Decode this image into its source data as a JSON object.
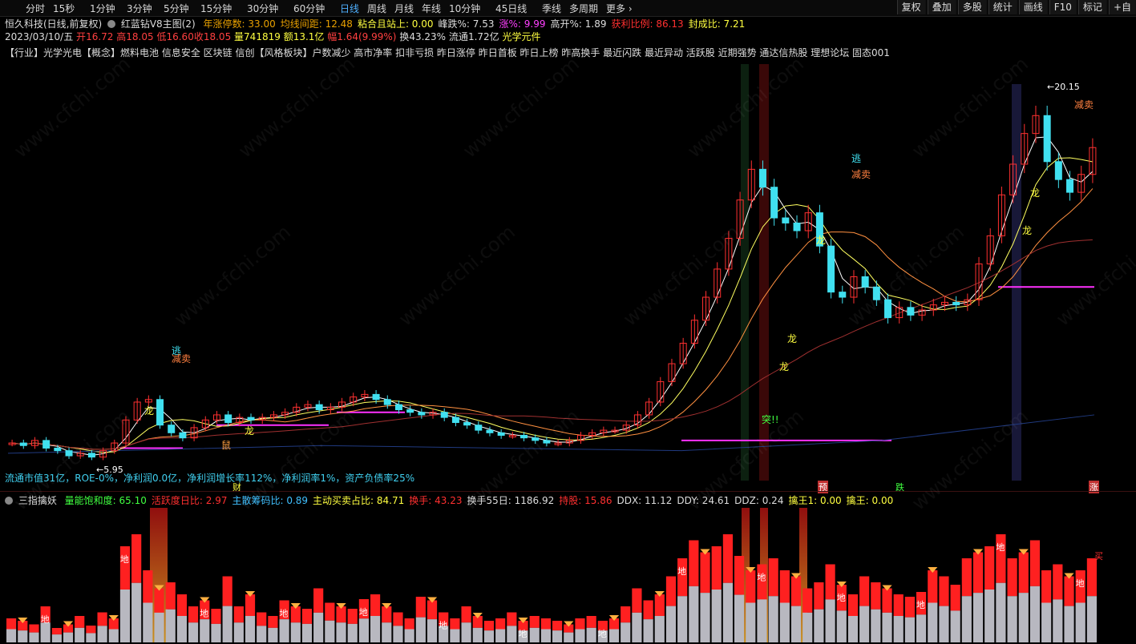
{
  "toolbar": {
    "timeframes": [
      "分时",
      "15秒",
      "1分钟",
      "3分钟",
      "5分钟",
      "15分钟",
      "30分钟",
      "60分钟",
      "日线",
      "周线",
      "月线",
      "年线",
      "10分钟",
      "45日线",
      "季线",
      "多周期",
      "更多"
    ],
    "active_timeframe": "日线",
    "right_buttons": [
      "复权",
      "叠加",
      "多股",
      "统计",
      "画线",
      "F10",
      "标记",
      "+自"
    ]
  },
  "header": {
    "stock_name": "恒久科技(日线,前复权)",
    "indicator_name": "红蓝钻V8主图(2)",
    "fields": [
      {
        "label": "年涨停数:",
        "value": "33.00",
        "color": "#e8a000"
      },
      {
        "label": "均线间距:",
        "value": "12.48",
        "color": "#e8a000"
      },
      {
        "label": "粘合且站上:",
        "value": "0.00",
        "color": "#ffff40"
      },
      {
        "label": "峰跌%:",
        "value": "7.53",
        "color": "#dddddd"
      },
      {
        "label": "涨%:",
        "value": "9.99",
        "color": "#ff40ff"
      },
      {
        "label": "高开%:",
        "value": "1.89",
        "color": "#dddddd"
      },
      {
        "label": "获利比例:",
        "value": "86.13",
        "color": "#ff3030"
      },
      {
        "label": "封成比:",
        "value": "7.21",
        "color": "#ffff40"
      }
    ]
  },
  "quote": {
    "date": "2023/03/10/五",
    "open_label": "开",
    "open": "16.72",
    "high_label": "高",
    "high": "18.05",
    "low_label": "低",
    "low": "16.60",
    "close_label": "收",
    "close": "18.05",
    "vol_label": "量",
    "vol": "741819",
    "amount_label": "额",
    "amount": "13.1亿",
    "pct_label": "幅",
    "pct": "1.64(9.99%)",
    "turnover_label": "换",
    "turnover": "43.23%",
    "float_label": "流通",
    "float": "1.72亿",
    "sector": "光学元件"
  },
  "concepts": "【行业】光学光电【概念】燃料电池 信息安全 区块链 信创【风格板块】户数减少 高市净率 扣非亏损 昨日涨停 昨日首板 昨日上榜 昨高换手 最近闪跌 最近异动 活跃股 近期强势 通达信热股 理想论坛 固态001",
  "fundamentals": "流通市值31亿，ROE-0%，净利润0.0亿，净利润增长率112%，净利润率1%，资产负债率25%",
  "chart_labels": {
    "high_price": "20.15",
    "low_price": "5.95",
    "escape": "逃",
    "reduce_sell": "减卖",
    "dragon": "龙",
    "breakthrough": "突!!",
    "rat": "鼠",
    "cai": "财",
    "yu": "预",
    "die": "跌",
    "zhang": "涨",
    "di": "地",
    "buy": "买"
  },
  "sub_header": {
    "name": "三指擒妖",
    "fields": [
      {
        "label": "量能饱和度:",
        "value": "65.10",
        "color": "#40ff40"
      },
      {
        "label": "活跃度日比:",
        "value": "2.97",
        "color": "#ff3030"
      },
      {
        "label": "主散筹码比:",
        "value": "0.89",
        "color": "#40c0ff"
      },
      {
        "label": "主动买卖占比:",
        "value": "84.71",
        "color": "#ffff40"
      },
      {
        "label": "换手:",
        "value": "43.23",
        "color": "#ff3030"
      },
      {
        "label": "换手55日:",
        "value": "1186.92",
        "color": "#dddddd"
      },
      {
        "label": "持股:",
        "value": "15.86",
        "color": "#ff3030"
      },
      {
        "label": "DDX:",
        "value": "11.12",
        "color": "#dddddd"
      },
      {
        "label": "DDY:",
        "value": "24.61",
        "color": "#dddddd"
      },
      {
        "label": "DDZ:",
        "value": "0.24",
        "color": "#dddddd"
      },
      {
        "label": "擒王1:",
        "value": "0.00",
        "color": "#ffff40"
      },
      {
        "label": "擒王:",
        "value": "0.00",
        "color": "#ffff40"
      }
    ]
  },
  "watermark": "www.cfchi.com",
  "colors": {
    "up": "#ff3030",
    "down": "#40e0f0",
    "ma5": "#ffffff",
    "ma10": "#ffff60",
    "ma20": "#ff9040",
    "ma60": "#a03030",
    "magenta": "#ff30ff"
  },
  "chart_data": {
    "type": "candlestick",
    "low_marker": 5.95,
    "high_marker": 20.15,
    "closes": [
      6.5,
      6.4,
      6.6,
      6.3,
      6.2,
      6.0,
      6.1,
      5.95,
      6.2,
      6.5,
      7.4,
      8.1,
      8.2,
      7.2,
      6.9,
      6.7,
      7.1,
      7.4,
      7.6,
      7.3,
      7.5,
      7.4,
      7.5,
      7.6,
      7.7,
      7.9,
      8.0,
      7.8,
      7.9,
      8.1,
      8.3,
      8.4,
      8.2,
      8.0,
      7.8,
      7.7,
      7.6,
      7.7,
      7.5,
      7.3,
      7.2,
      7.0,
      6.9,
      6.8,
      6.8,
      6.7,
      6.6,
      6.5,
      6.5,
      6.6,
      6.8,
      6.9,
      7.0,
      7.0,
      7.2,
      7.6,
      8.1,
      8.9,
      9.6,
      10.4,
      11.3,
      12.2,
      13.3,
      14.5,
      16.0,
      17.2,
      16.5,
      15.3,
      15.1,
      14.8,
      15.5,
      14.2,
      12.4,
      12.2,
      13.0,
      12.6,
      12.1,
      11.4,
      11.8,
      11.5,
      11.7,
      11.9,
      12.0,
      11.9,
      12.1,
      13.5,
      14.6,
      16.2,
      17.4,
      18.6,
      19.3,
      17.5,
      16.8,
      16.3,
      17.0,
      18.05
    ],
    "volume_scale": [
      20,
      18,
      15,
      30,
      12,
      15,
      22,
      14,
      25,
      20,
      80,
      90,
      60,
      45,
      50,
      40,
      30,
      35,
      28,
      55,
      30,
      40,
      25,
      22,
      35,
      30,
      28,
      45,
      33,
      30,
      28,
      36,
      40,
      30,
      25,
      20,
      38,
      35,
      25,
      20,
      30,
      22,
      18,
      20,
      25,
      18,
      22,
      20,
      18,
      15,
      20,
      22,
      18,
      20,
      30,
      45,
      35,
      40,
      55,
      70,
      85,
      75,
      80,
      90,
      72,
      60,
      65,
      70,
      60,
      55,
      45,
      50,
      65,
      48,
      40,
      55,
      50,
      45,
      40,
      38,
      42,
      60,
      55,
      48,
      70,
      75,
      80,
      90,
      70,
      75,
      85,
      60,
      65,
      55,
      60,
      70
    ]
  }
}
